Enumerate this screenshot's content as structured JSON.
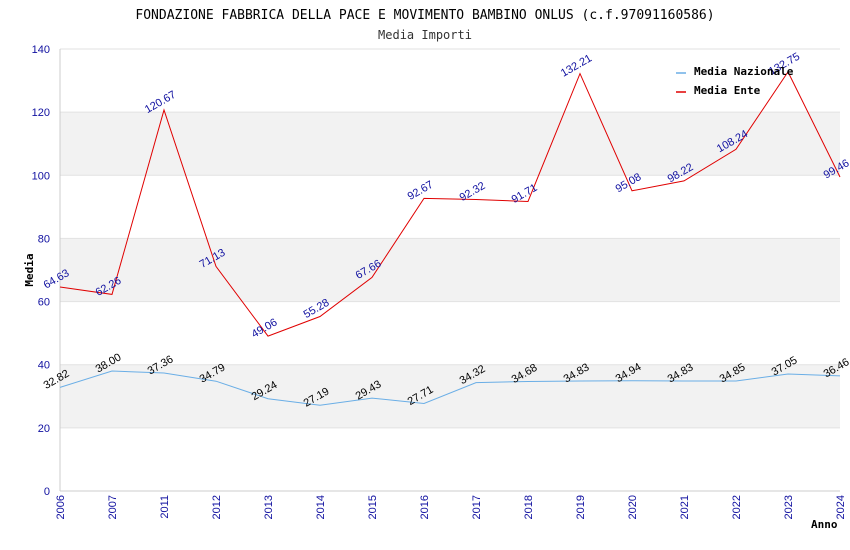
{
  "title": "FONDAZIONE FABBRICA DELLA PACE E MOVIMENTO BAMBINO ONLUS (c.f.97091160586)",
  "subtitle": "Media Importi",
  "chart_data": {
    "type": "line",
    "xlabel": "Anno",
    "ylabel": "Media",
    "ylim": [
      0,
      140
    ],
    "yticks": [
      0,
      20,
      40,
      60,
      80,
      100,
      120,
      140
    ],
    "grid": "horizontal alternating bands",
    "legend_position": "top-right",
    "categories": [
      "2006",
      "2007",
      "2011",
      "2012",
      "2013",
      "2014",
      "2015",
      "2016",
      "2017",
      "2018",
      "2019",
      "2020",
      "2021",
      "2022",
      "2023",
      "2024"
    ],
    "series": [
      {
        "name": "Media Nazionale",
        "color": "#6aaee6",
        "label_color": "#000000",
        "values": [
          32.82,
          38.0,
          37.36,
          34.79,
          29.24,
          27.19,
          29.43,
          27.71,
          34.32,
          34.68,
          34.83,
          34.94,
          34.83,
          34.85,
          37.05,
          36.46
        ],
        "labels": [
          "32.82",
          "38.00",
          "37.36",
          "34.79",
          "29.24",
          "27.19",
          "29.43",
          "27.71",
          "34.32",
          "34.68",
          "34.83",
          "34.94",
          "34.83",
          "34.85",
          "37.05",
          "36.46"
        ]
      },
      {
        "name": "Media Ente",
        "color": "#e00000",
        "label_color": "#1010a0",
        "values": [
          64.63,
          62.26,
          120.67,
          71.13,
          49.06,
          55.28,
          67.66,
          92.67,
          92.32,
          91.71,
          132.21,
          95.08,
          98.22,
          108.24,
          132.75,
          99.46
        ],
        "labels": [
          "64.63",
          "62.26",
          "120.67",
          "71.13",
          "49.06",
          "55.28",
          "67.66",
          "92.67",
          "92.32",
          "91.71",
          "132.21",
          "95.08",
          "98.22",
          "108.24",
          "132.75",
          "99.46"
        ]
      }
    ]
  }
}
